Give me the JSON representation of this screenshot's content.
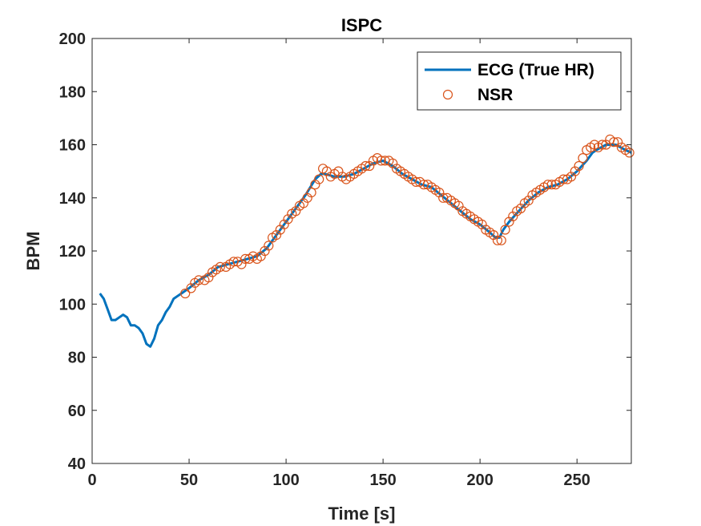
{
  "chart_data": {
    "type": "line",
    "title": "ISPC",
    "xlabel": "Time [s]",
    "ylabel": "BPM",
    "xlim": [
      0,
      278
    ],
    "ylim": [
      40,
      200
    ],
    "xticks": [
      0,
      50,
      100,
      150,
      200,
      250
    ],
    "yticks": [
      40,
      60,
      80,
      100,
      120,
      140,
      160,
      180,
      200
    ],
    "grid": false,
    "legend_position": "top-right",
    "series": [
      {
        "name": "ECG (True HR)",
        "style": "line",
        "color": "#0072BD",
        "x": [
          4,
          6,
          8,
          10,
          12,
          14,
          16,
          18,
          20,
          22,
          24,
          26,
          28,
          30,
          32,
          34,
          36,
          38,
          40,
          42,
          44,
          46,
          48,
          50,
          55,
          60,
          65,
          70,
          75,
          80,
          85,
          90,
          95,
          100,
          105,
          110,
          115,
          118,
          120,
          125,
          130,
          135,
          140,
          145,
          150,
          155,
          160,
          165,
          170,
          175,
          180,
          185,
          190,
          195,
          200,
          205,
          208,
          210,
          212,
          215,
          220,
          225,
          230,
          235,
          240,
          245,
          250,
          255,
          258,
          260,
          265,
          270,
          275,
          278
        ],
        "y": [
          104,
          102,
          98,
          94,
          94,
          95,
          96,
          95,
          92,
          92,
          91,
          89,
          85,
          84,
          87,
          92,
          94,
          97,
          99,
          102,
          103,
          104,
          105,
          106,
          109,
          111,
          114,
          115,
          116,
          117,
          118,
          121,
          126,
          131,
          136,
          141,
          147,
          149,
          149,
          148,
          148,
          149,
          151,
          153,
          154,
          152,
          149,
          147,
          145,
          144,
          141,
          138,
          135,
          132,
          130,
          127,
          125,
          125,
          128,
          131,
          135,
          139,
          142,
          144,
          145,
          147,
          150,
          154,
          157,
          158,
          160,
          160,
          158,
          157
        ]
      },
      {
        "name": "NSR",
        "style": "markers",
        "color": "#D95319",
        "x": [
          48,
          51,
          53,
          55,
          58,
          60,
          62,
          64,
          66,
          69,
          71,
          73,
          75,
          77,
          79,
          81,
          83,
          85,
          87,
          89,
          91,
          93,
          95,
          97,
          99,
          101,
          103,
          105,
          107,
          109,
          111,
          113,
          115,
          117,
          119,
          121,
          123,
          125,
          127,
          129,
          131,
          133,
          135,
          137,
          139,
          141,
          143,
          145,
          147,
          149,
          151,
          153,
          155,
          157,
          159,
          161,
          163,
          165,
          167,
          169,
          171,
          173,
          175,
          177,
          179,
          181,
          183,
          185,
          187,
          189,
          191,
          193,
          195,
          197,
          199,
          201,
          203,
          205,
          207,
          209,
          211,
          213,
          215,
          217,
          219,
          221,
          223,
          225,
          227,
          229,
          231,
          233,
          235,
          237,
          239,
          241,
          243,
          245,
          247,
          249,
          251,
          253,
          255,
          257,
          259,
          261,
          263,
          265,
          267,
          269,
          271,
          273,
          275,
          277
        ],
        "y": [
          104,
          106,
          108,
          109,
          109,
          110,
          112,
          113,
          114,
          114,
          115,
          116,
          116,
          115,
          117,
          117,
          118,
          117,
          118,
          120,
          122,
          125,
          126,
          128,
          130,
          132,
          134,
          135,
          137,
          138,
          140,
          142,
          145,
          147,
          151,
          150,
          148,
          149,
          150,
          148,
          147,
          148,
          149,
          150,
          151,
          152,
          152,
          154,
          155,
          154,
          154,
          154,
          153,
          151,
          150,
          149,
          148,
          147,
          146,
          146,
          145,
          145,
          144,
          143,
          142,
          140,
          140,
          139,
          138,
          137,
          135,
          134,
          133,
          132,
          131,
          130,
          128,
          127,
          126,
          124,
          124,
          128,
          131,
          133,
          135,
          136,
          138,
          139,
          141,
          142,
          143,
          144,
          145,
          145,
          145,
          146,
          147,
          147,
          148,
          150,
          152,
          155,
          158,
          159,
          160,
          159,
          160,
          160,
          162,
          161,
          161,
          159,
          158,
          157
        ]
      }
    ]
  }
}
